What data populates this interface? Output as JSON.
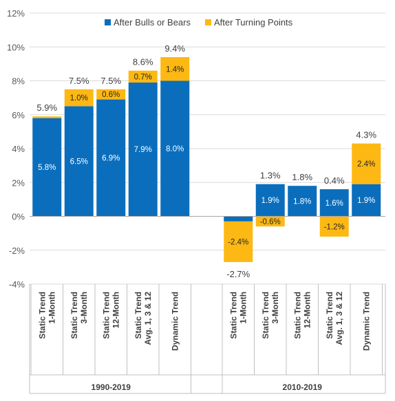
{
  "chart_data": {
    "type": "bar",
    "stacked": true,
    "title": "",
    "xlabel": "",
    "ylabel": "",
    "ylim": [
      -4,
      12
    ],
    "ytick_step": 2,
    "ytick_format": "percent",
    "grid": true,
    "legend": {
      "placement": "top",
      "entries": [
        "After Bulls or Bears",
        "After Turning Points"
      ]
    },
    "colors": {
      "bulls_bears": "#0A6EBD",
      "turning_points": "#FDB813",
      "grid": "#D9D9D9",
      "axis": "#A6A6A6",
      "divider": "#BFBFBF"
    },
    "groups": [
      {
        "name": "1990-2019",
        "categories": [
          {
            "label": [
              "Static Trend",
              "1-Month"
            ],
            "after_bulls_or_bears": 5.8,
            "after_turning_points": 0.1,
            "total": 5.9,
            "bulls_label": "5.8%",
            "turning_label": "",
            "total_label": "5.9%"
          },
          {
            "label": [
              "Static Trend",
              "3-Month"
            ],
            "after_bulls_or_bears": 6.5,
            "after_turning_points": 1.0,
            "total": 7.5,
            "bulls_label": "6.5%",
            "turning_label": "1.0%",
            "total_label": "7.5%"
          },
          {
            "label": [
              "Static Trend",
              "12-Month"
            ],
            "after_bulls_or_bears": 6.9,
            "after_turning_points": 0.6,
            "total": 7.5,
            "bulls_label": "6.9%",
            "turning_label": "0.6%",
            "total_label": "7.5%"
          },
          {
            "label": [
              "Static Trend",
              "Avg. 1, 3 & 12"
            ],
            "after_bulls_or_bears": 7.9,
            "after_turning_points": 0.7,
            "total": 8.6,
            "bulls_label": "7.9%",
            "turning_label": "0.7%",
            "total_label": "8.6%"
          },
          {
            "label": [
              "Dynamic Trend"
            ],
            "after_bulls_or_bears": 8.0,
            "after_turning_points": 1.4,
            "total": 9.4,
            "bulls_label": "8.0%",
            "turning_label": "1.4%",
            "total_label": "9.4%"
          }
        ]
      },
      {
        "name": "2010-2019",
        "categories": [
          {
            "label": [
              "Static Trend",
              "1-Month"
            ],
            "after_bulls_or_bears": -0.3,
            "after_turning_points": -2.4,
            "total": -2.7,
            "bulls_label": "",
            "turning_label": "-2.4%",
            "total_label": "-2.7%"
          },
          {
            "label": [
              "Static Trend",
              "3-Month"
            ],
            "after_bulls_or_bears": 1.9,
            "after_turning_points": -0.6,
            "total": 1.3,
            "bulls_label": "1.9%",
            "turning_label": "-0.6%",
            "total_label": "1.3%"
          },
          {
            "label": [
              "Static Trend",
              "12-Month"
            ],
            "after_bulls_or_bears": 1.8,
            "after_turning_points": 0.0,
            "total": 1.8,
            "bulls_label": "1.8%",
            "turning_label": "",
            "total_label": "1.8%"
          },
          {
            "label": [
              "Static Trend",
              "Avg. 1, 3 & 12"
            ],
            "after_bulls_or_bears": 1.6,
            "after_turning_points": -1.2,
            "total": 0.4,
            "bulls_label": "1.6%",
            "turning_label": "-1.2%",
            "total_label": "0.4%"
          },
          {
            "label": [
              "Dynamic Trend"
            ],
            "after_bulls_or_bears": 1.9,
            "after_turning_points": 2.4,
            "total": 4.3,
            "bulls_label": "1.9%",
            "turning_label": "2.4%",
            "total_label": "4.3%"
          }
        ]
      }
    ]
  }
}
